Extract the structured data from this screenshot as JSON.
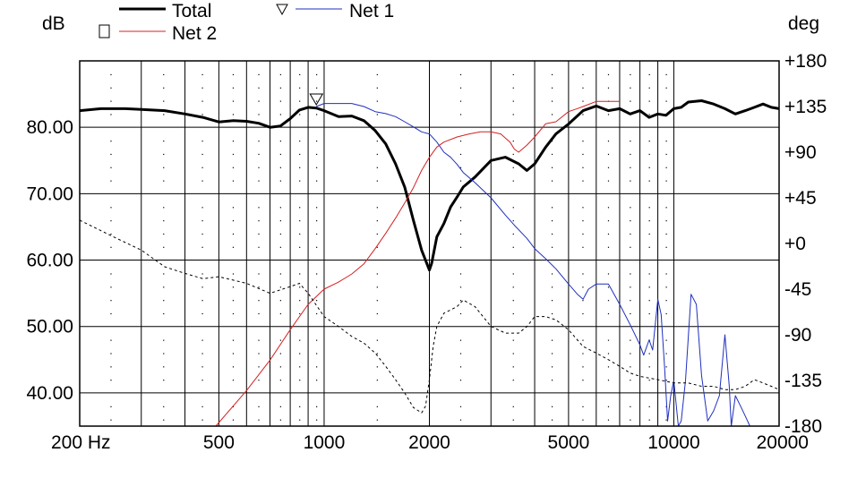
{
  "chart_data": {
    "type": "line",
    "x_scale": "log",
    "xlim": [
      200,
      20000
    ],
    "ylim_left": [
      35,
      90
    ],
    "ylim_right": [
      -180,
      180
    ],
    "left_unit": "dB",
    "right_unit": "deg",
    "x_ticks": [
      {
        "value": 200,
        "label": "200 Hz"
      },
      {
        "value": 500,
        "label": "500"
      },
      {
        "value": 1000,
        "label": "1000"
      },
      {
        "value": 2000,
        "label": "2000"
      },
      {
        "value": 5000,
        "label": "5000"
      },
      {
        "value": 10000,
        "label": "10000"
      },
      {
        "value": 20000,
        "label": "20000"
      }
    ],
    "y_ticks_left": [
      {
        "value": 80,
        "label": "80.00"
      },
      {
        "value": 70,
        "label": "70.00"
      },
      {
        "value": 60,
        "label": "60.00"
      },
      {
        "value": 50,
        "label": "50.00"
      },
      {
        "value": 40,
        "label": "40.00"
      }
    ],
    "y_ticks_right": [
      {
        "value": 180,
        "label": "+180"
      },
      {
        "value": 135,
        "label": "+135"
      },
      {
        "value": 90,
        "label": "+90"
      },
      {
        "value": 45,
        "label": "+45"
      },
      {
        "value": 0,
        "label": "+0"
      },
      {
        "value": -45,
        "label": "-45"
      },
      {
        "value": -90,
        "label": "-90"
      },
      {
        "value": -135,
        "label": "-135"
      },
      {
        "value": -180,
        "label": "-180"
      }
    ],
    "grid": true,
    "legend": [
      {
        "name": "Total",
        "color": "#000000",
        "marker": "none"
      },
      {
        "name": "Net 1",
        "color": "#1f2fbf",
        "marker": "triangle-down"
      },
      {
        "name": "Net 2",
        "color": "#d42020",
        "marker": "square"
      }
    ],
    "series": [
      {
        "name": "Total",
        "axis": "left",
        "color": "#000000",
        "width": 3,
        "x": [
          200,
          230,
          270,
          300,
          350,
          400,
          450,
          500,
          550,
          600,
          650,
          700,
          750,
          800,
          850,
          900,
          950,
          1000,
          1100,
          1200,
          1300,
          1400,
          1500,
          1600,
          1700,
          1800,
          1900,
          2000,
          2030,
          2100,
          2200,
          2300,
          2400,
          2500,
          2700,
          3000,
          3300,
          3600,
          3800,
          4000,
          4300,
          4600,
          5000,
          5500,
          6000,
          6500,
          7000,
          7500,
          8000,
          8500,
          9000,
          9500,
          10000,
          10500,
          11000,
          12000,
          13000,
          14000,
          15000,
          16000,
          17000,
          18000,
          19000,
          20000
        ],
        "y": [
          82.5,
          82.8,
          82.8,
          82.7,
          82.5,
          82.0,
          81.5,
          80.8,
          81.0,
          80.9,
          80.6,
          80.0,
          80.2,
          81.3,
          82.6,
          83.0,
          82.9,
          82.5,
          81.6,
          81.7,
          81.0,
          79.5,
          77.5,
          74.5,
          71.0,
          66.0,
          61.5,
          58.5,
          59.5,
          63.5,
          65.5,
          68.0,
          69.5,
          71.0,
          72.5,
          75.0,
          75.5,
          74.5,
          73.5,
          74.5,
          77.0,
          79.0,
          80.5,
          82.5,
          83.2,
          82.5,
          82.8,
          82.0,
          82.5,
          81.5,
          82.0,
          81.8,
          82.8,
          83.0,
          83.8,
          84.0,
          83.5,
          82.8,
          82.0,
          82.5,
          83.0,
          83.5,
          83.0,
          82.8
        ]
      },
      {
        "name": "Net 1",
        "axis": "right",
        "color": "#1f2fbf",
        "width": 1,
        "x": [
          950,
          1000,
          1100,
          1200,
          1300,
          1400,
          1500,
          1600,
          1700,
          1800,
          1900,
          2000,
          2100,
          2200,
          2300,
          2400,
          2500,
          2700,
          3000,
          3300,
          3500,
          3800,
          4000,
          4300,
          4600,
          5000,
          5300,
          5500,
          5700,
          6000,
          6500,
          7000,
          7500,
          8000,
          8200,
          8500,
          8700,
          9000,
          9200,
          9400,
          9600,
          9800,
          10000,
          10300,
          10500,
          10800,
          11200,
          11600,
          12000,
          12500,
          13000,
          13500,
          14000,
          14400,
          14600,
          15000,
          15500,
          16000,
          16500
        ],
        "y": [
          135,
          138,
          138,
          138,
          135,
          130,
          128,
          125,
          120,
          115,
          110,
          108,
          100,
          90,
          85,
          78,
          70,
          60,
          45,
          28,
          18,
          5,
          -5,
          -15,
          -25,
          -40,
          -50,
          -55,
          -45,
          -40,
          -40,
          -60,
          -80,
          -100,
          -110,
          -95,
          -105,
          -55,
          -70,
          -120,
          -175,
          -150,
          -135,
          -180,
          -175,
          -135,
          -50,
          -60,
          -130,
          -175,
          -165,
          -150,
          -90,
          -140,
          -180,
          -150,
          -160,
          -170,
          -180
        ]
      },
      {
        "name": "Net 2",
        "axis": "right",
        "color": "#d42020",
        "width": 1,
        "x": [
          490,
          550,
          600,
          700,
          800,
          900,
          1000,
          1100,
          1200,
          1300,
          1400,
          1500,
          1600,
          1700,
          1800,
          1900,
          2000,
          2100,
          2200,
          2400,
          2600,
          2800,
          3000,
          3200,
          3400,
          3500,
          3600,
          3800,
          4000,
          4300,
          4600,
          5000,
          5300,
          5500,
          6000,
          6500,
          7000
        ],
        "y": [
          -180,
          -160,
          -145,
          -115,
          -85,
          -60,
          -45,
          -38,
          -30,
          -20,
          -5,
          10,
          25,
          40,
          55,
          72,
          85,
          95,
          100,
          105,
          108,
          110,
          110,
          108,
          100,
          93,
          90,
          97,
          105,
          118,
          120,
          130,
          133,
          135,
          140,
          140,
          140
        ]
      },
      {
        "name": "",
        "axis": "left",
        "color": "#000000",
        "width": 1,
        "dash": true,
        "x": [
          200,
          250,
          300,
          350,
          400,
          450,
          500,
          600,
          700,
          800,
          850,
          900,
          1000,
          1100,
          1200,
          1300,
          1400,
          1500,
          1600,
          1700,
          1800,
          1900,
          1950,
          2000,
          2050,
          2100,
          2200,
          2300,
          2400,
          2500,
          2700,
          3000,
          3300,
          3600,
          3800,
          4000,
          4300,
          4600,
          5000,
          5500,
          6000,
          6500,
          7000,
          7500,
          8000,
          9000,
          10000,
          11000,
          12000,
          13000,
          14000,
          15000,
          16000,
          17000,
          18000,
          19000,
          20000
        ],
        "y": [
          66.0,
          63.5,
          61.5,
          59.0,
          58.0,
          57.2,
          57.5,
          56.5,
          55.0,
          56.0,
          56.5,
          55.0,
          51.5,
          50.0,
          48.5,
          47.5,
          46.0,
          44.0,
          42.0,
          40.0,
          37.8,
          37.0,
          38.0,
          42.0,
          47.0,
          50.0,
          52.0,
          52.5,
          53.0,
          54.0,
          53.0,
          50.0,
          49.0,
          49.0,
          50.0,
          51.5,
          51.5,
          51.0,
          49.5,
          47.0,
          46.0,
          45.0,
          44.0,
          43.0,
          42.5,
          42.0,
          41.5,
          41.5,
          41.0,
          41.0,
          40.5,
          40.5,
          41.0,
          42.0,
          41.5,
          41.0,
          40.5
        ]
      }
    ]
  }
}
